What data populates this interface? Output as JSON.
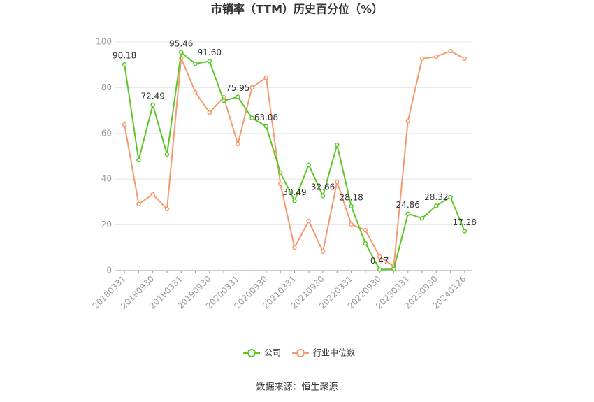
{
  "chart_data": {
    "type": "line",
    "title": "市销率（TTM）历史百分位（%）",
    "categories": [
      "20180331",
      null,
      "20180930",
      null,
      "20190331",
      null,
      "20190930",
      null,
      "20200331",
      null,
      "20200930",
      null,
      "20210331",
      null,
      "20210930",
      null,
      "20220331",
      null,
      "20220930",
      null,
      "20230331",
      null,
      "20230930",
      null,
      "20240126"
    ],
    "series": [
      {
        "name": "公司",
        "color": "#5cc726",
        "values": [
          90.18,
          48.3,
          72.49,
          50.8,
          95.46,
          90.5,
          91.6,
          74.3,
          75.95,
          66.7,
          63.08,
          42.8,
          30.49,
          46.2,
          32.66,
          55.0,
          28.18,
          11.9,
          0.47,
          0.6,
          24.86,
          22.9,
          28.32,
          32.1,
          17.28
        ],
        "value_labels": [
          "90.18",
          null,
          "72.49",
          null,
          "95.46",
          null,
          "91.60",
          null,
          "75.95",
          null,
          "63.08",
          null,
          "30.49",
          null,
          "32.66",
          null,
          "28.18",
          null,
          "0.47",
          null,
          "24.86",
          null,
          "28.32",
          null,
          "17.28"
        ]
      },
      {
        "name": "行业中位数",
        "color": "#f59a6e",
        "values": [
          63.9,
          29.1,
          33.3,
          26.9,
          93.0,
          78.0,
          69.1,
          75.8,
          55.4,
          80.1,
          84.4,
          37.9,
          10.1,
          21.7,
          8.3,
          38.8,
          20.2,
          17.7,
          6.1,
          1.8,
          65.4,
          92.7,
          93.6,
          96.0,
          92.7
        ]
      }
    ],
    "ylim": [
      0,
      100
    ],
    "yticks": [
      0,
      20,
      40,
      60,
      80,
      100
    ],
    "grid": true,
    "legend": "bottom",
    "source": "数据来源：恒生聚源"
  }
}
